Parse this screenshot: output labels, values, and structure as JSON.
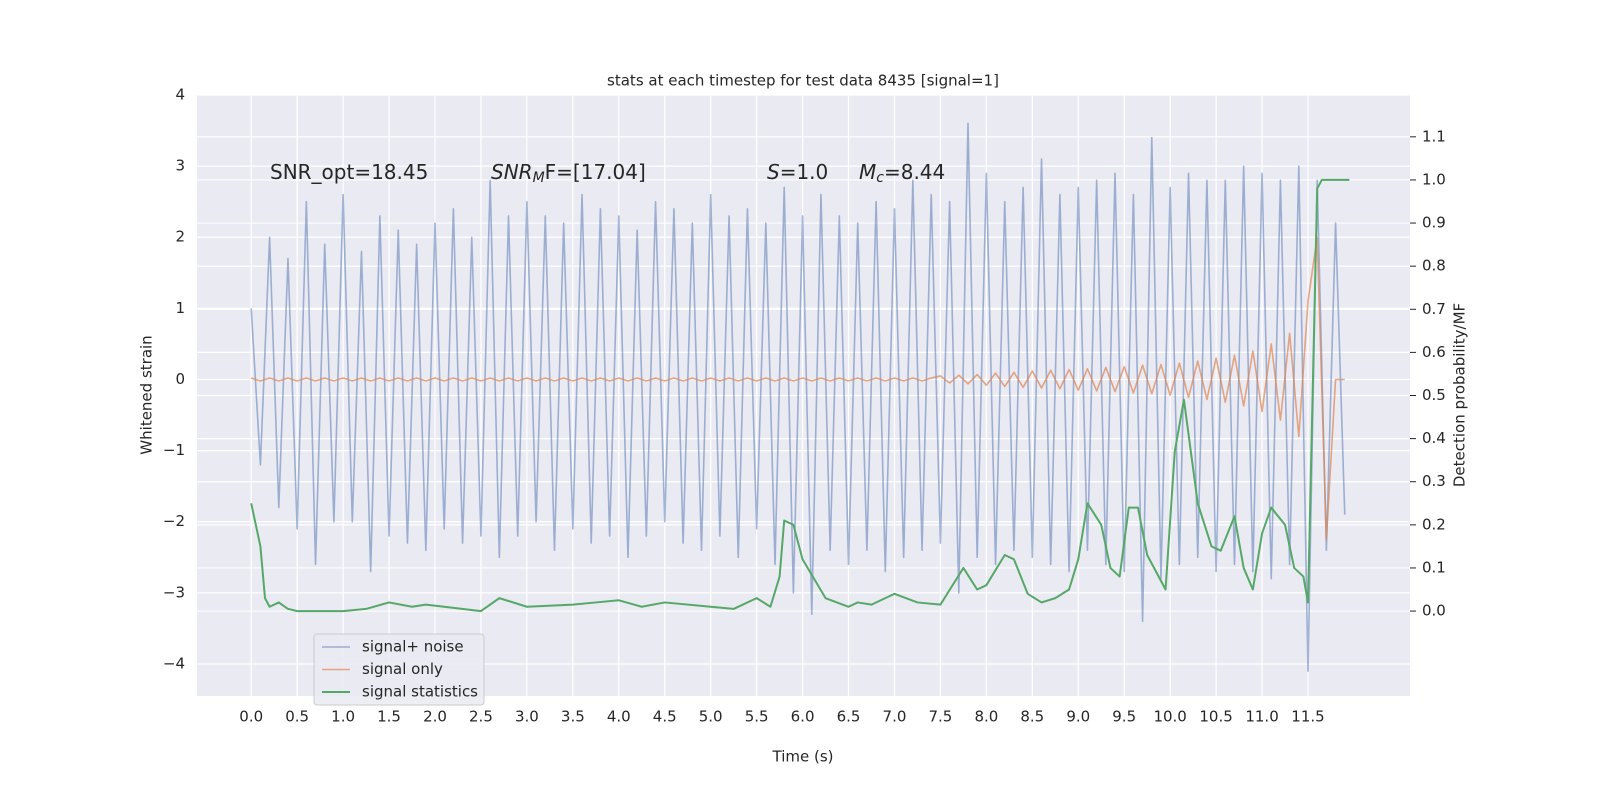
{
  "chart_data": {
    "type": "line",
    "title": "stats at each timestep for test data 8435 [signal=1]",
    "xlabel": "Time (s)",
    "ylabel": "Whitened strain",
    "y2label": "Detection probability/MF",
    "xlim": [
      -0.59,
      12.61
    ],
    "ylim": [
      -4.45,
      4.0
    ],
    "y2lim": [
      -0.197,
      1.197
    ],
    "xticks": [
      {
        "value": 0,
        "label": "0.0"
      },
      0.5,
      {
        "value": 1,
        "label": "1.0"
      },
      1.5,
      {
        "value": 2,
        "label": "2.0"
      },
      2.5,
      {
        "value": 3,
        "label": "3.0"
      },
      3.5,
      {
        "value": 4,
        "label": "4.0"
      },
      4.5,
      {
        "value": 5,
        "label": "5.0"
      },
      5.5,
      {
        "value": 6,
        "label": "6.0"
      },
      6.5,
      {
        "value": 7,
        "label": "7.0"
      },
      7.5,
      {
        "value": 8,
        "label": "8.0"
      },
      8.5,
      {
        "value": 9,
        "label": "9.0"
      },
      9.5,
      {
        "value": 10,
        "label": "10.0"
      },
      10.5,
      {
        "value": 11,
        "label": "11.0"
      },
      11.5
    ],
    "yticks": [
      {
        "value": -4,
        "label": "−4"
      },
      {
        "value": -3,
        "label": "−3"
      },
      {
        "value": -2,
        "label": "−2"
      },
      {
        "value": -1,
        "label": "−1"
      },
      0,
      1,
      2,
      3,
      4
    ],
    "y2ticks": [
      {
        "value": 0,
        "label": "0.0"
      },
      0.1,
      0.2,
      0.3,
      0.4,
      0.5,
      0.6,
      0.7,
      0.8,
      0.9,
      {
        "value": 1,
        "label": "1.0"
      },
      1.1
    ],
    "grid": true,
    "legend": "lower left",
    "annotations": [
      {
        "text": "SNR_opt=18.45"
      },
      {
        "text": "SNR",
        "sub": "M",
        "rest": "F=[17.04]"
      },
      {
        "text": "S",
        "rest": "=1.0"
      },
      {
        "text": "M",
        "sub": "c",
        "rest": "=8.44"
      }
    ],
    "series": [
      {
        "name": "signal+ noise",
        "color": "#4c72b0",
        "x": [
          0.0,
          0.1,
          0.2,
          0.3,
          0.4,
          0.5,
          0.6,
          0.7,
          0.8,
          0.9,
          1.0,
          1.1,
          1.2,
          1.3,
          1.4,
          1.5,
          1.6,
          1.7,
          1.8,
          1.9,
          2.0,
          2.1,
          2.2,
          2.3,
          2.4,
          2.5,
          2.6,
          2.7,
          2.8,
          2.9,
          3.0,
          3.1,
          3.2,
          3.3,
          3.4,
          3.5,
          3.6,
          3.7,
          3.8,
          3.9,
          4.0,
          4.1,
          4.2,
          4.3,
          4.4,
          4.5,
          4.6,
          4.7,
          4.8,
          4.9,
          5.0,
          5.1,
          5.2,
          5.3,
          5.4,
          5.5,
          5.6,
          5.7,
          5.8,
          5.9,
          6.0,
          6.1,
          6.2,
          6.3,
          6.4,
          6.5,
          6.6,
          6.7,
          6.8,
          6.9,
          7.0,
          7.1,
          7.2,
          7.3,
          7.4,
          7.5,
          7.6,
          7.7,
          7.8,
          7.9,
          8.0,
          8.1,
          8.2,
          8.3,
          8.4,
          8.5,
          8.6,
          8.7,
          8.8,
          8.9,
          9.0,
          9.1,
          9.2,
          9.3,
          9.4,
          9.5,
          9.6,
          9.7,
          9.8,
          9.9,
          10.0,
          10.1,
          10.2,
          10.3,
          10.4,
          10.5,
          10.6,
          10.7,
          10.8,
          10.9,
          11.0,
          11.1,
          11.2,
          11.3,
          11.4,
          11.5,
          11.6,
          11.7,
          11.8,
          11.9
        ],
        "values": [
          1.0,
          -1.2,
          2.0,
          -1.8,
          1.7,
          -2.1,
          2.5,
          -2.6,
          1.9,
          -2.0,
          2.6,
          -2.0,
          1.8,
          -2.7,
          2.3,
          -2.2,
          2.1,
          -2.3,
          1.9,
          -2.4,
          2.2,
          -2.1,
          2.4,
          -2.3,
          2.0,
          -2.2,
          2.8,
          -2.5,
          2.3,
          -2.2,
          2.5,
          -2.0,
          2.3,
          -2.4,
          2.2,
          -2.1,
          2.6,
          -2.3,
          2.4,
          -2.2,
          2.3,
          -2.5,
          2.1,
          -2.2,
          2.5,
          -2.0,
          2.4,
          -2.3,
          2.2,
          -2.4,
          2.6,
          -2.2,
          2.3,
          -2.5,
          2.4,
          -2.1,
          2.2,
          -2.6,
          2.7,
          -3.0,
          2.3,
          -3.3,
          2.6,
          -2.4,
          2.3,
          -2.6,
          2.2,
          -2.4,
          2.5,
          -2.7,
          2.4,
          -2.5,
          2.8,
          -2.4,
          2.6,
          -2.3,
          2.5,
          -3.0,
          3.6,
          -2.5,
          2.9,
          -2.6,
          2.5,
          -2.4,
          2.7,
          -2.5,
          3.1,
          -2.6,
          2.6,
          -2.7,
          2.7,
          -2.4,
          2.8,
          -2.6,
          2.9,
          -2.7,
          2.6,
          -3.4,
          3.4,
          -2.8,
          2.7,
          -2.6,
          2.9,
          -2.5,
          2.8,
          -2.7,
          2.8,
          -2.6,
          3.0,
          -2.7,
          2.9,
          -2.8,
          2.8,
          -2.6,
          3.0,
          -4.1,
          2.8,
          -2.4,
          2.2,
          -1.9
        ]
      },
      {
        "name": "signal only",
        "color": "#dd8452",
        "x": [
          0.0,
          0.1,
          0.2,
          0.3,
          0.4,
          0.5,
          0.6,
          0.7,
          0.8,
          0.9,
          1.0,
          1.1,
          1.2,
          1.3,
          1.4,
          1.5,
          1.6,
          1.7,
          1.8,
          1.9,
          2.0,
          2.1,
          2.2,
          2.3,
          2.4,
          2.5,
          2.6,
          2.7,
          2.8,
          2.9,
          3.0,
          3.1,
          3.2,
          3.3,
          3.4,
          3.5,
          3.6,
          3.7,
          3.8,
          3.9,
          4.0,
          4.1,
          4.2,
          4.3,
          4.4,
          4.5,
          4.6,
          4.7,
          4.8,
          4.9,
          5.0,
          5.1,
          5.2,
          5.3,
          5.4,
          5.5,
          5.6,
          5.7,
          5.8,
          5.9,
          6.0,
          6.1,
          6.2,
          6.3,
          6.4,
          6.5,
          6.6,
          6.7,
          6.8,
          6.9,
          7.0,
          7.1,
          7.2,
          7.3,
          7.4,
          7.5,
          7.6,
          7.7,
          7.8,
          7.9,
          8.0,
          8.1,
          8.2,
          8.3,
          8.4,
          8.5,
          8.6,
          8.7,
          8.8,
          8.9,
          9.0,
          9.1,
          9.2,
          9.3,
          9.4,
          9.5,
          9.6,
          9.7,
          9.8,
          9.9,
          10.0,
          10.1,
          10.2,
          10.3,
          10.4,
          10.5,
          10.6,
          10.7,
          10.8,
          10.9,
          11.0,
          11.1,
          11.2,
          11.3,
          11.4,
          11.5,
          11.6,
          11.7,
          11.8,
          11.9
        ],
        "values": [
          0.02,
          -0.02,
          0.02,
          -0.02,
          0.02,
          -0.02,
          0.02,
          -0.02,
          0.02,
          -0.02,
          0.02,
          -0.02,
          0.02,
          -0.02,
          0.02,
          -0.02,
          0.02,
          -0.02,
          0.02,
          -0.02,
          0.02,
          -0.02,
          0.02,
          -0.02,
          0.02,
          -0.02,
          0.02,
          -0.02,
          0.02,
          -0.02,
          0.02,
          -0.02,
          0.02,
          -0.02,
          0.02,
          -0.02,
          0.02,
          -0.02,
          0.02,
          -0.02,
          0.02,
          -0.02,
          0.02,
          -0.02,
          0.02,
          -0.02,
          0.02,
          -0.02,
          0.02,
          -0.02,
          0.02,
          -0.02,
          0.02,
          -0.02,
          0.02,
          -0.02,
          0.02,
          -0.02,
          0.02,
          -0.02,
          0.02,
          -0.02,
          0.02,
          -0.02,
          0.02,
          -0.02,
          0.02,
          -0.02,
          0.02,
          -0.02,
          0.02,
          -0.02,
          0.02,
          -0.02,
          0.02,
          0.05,
          -0.05,
          0.06,
          -0.06,
          0.07,
          -0.08,
          0.09,
          -0.1,
          0.1,
          -0.11,
          0.12,
          -0.12,
          0.13,
          -0.13,
          0.14,
          -0.15,
          0.15,
          -0.16,
          0.17,
          -0.17,
          0.18,
          -0.19,
          0.2,
          -0.2,
          0.21,
          -0.22,
          0.23,
          -0.25,
          0.26,
          -0.28,
          0.3,
          -0.32,
          0.34,
          -0.37,
          0.4,
          -0.45,
          0.5,
          -0.57,
          0.65,
          -0.8,
          1.1,
          2.0,
          -2.25,
          0,
          0
        ]
      },
      {
        "name": "signal statistics",
        "color": "#55a868",
        "axis": "y2",
        "x": [
          0,
          0.1,
          0.15,
          0.2,
          0.3,
          0.4,
          0.5,
          0.75,
          1.0,
          1.25,
          1.5,
          1.75,
          1.9,
          2.1,
          2.5,
          2.7,
          3.0,
          3.5,
          3.75,
          4.0,
          4.25,
          4.5,
          5.0,
          5.25,
          5.5,
          5.65,
          5.75,
          5.8,
          5.9,
          6.0,
          6.25,
          6.5,
          6.6,
          6.75,
          7.0,
          7.25,
          7.5,
          7.75,
          7.9,
          8.0,
          8.2,
          8.3,
          8.45,
          8.6,
          8.75,
          8.9,
          9.0,
          9.1,
          9.25,
          9.35,
          9.45,
          9.55,
          9.65,
          9.75,
          9.95,
          10.05,
          10.15,
          10.3,
          10.45,
          10.55,
          10.7,
          10.8,
          10.9,
          11.0,
          11.1,
          11.25,
          11.35,
          11.45,
          11.5,
          11.6,
          11.65,
          11.7,
          11.75,
          11.95
        ],
        "values": [
          0.25,
          0.15,
          0.03,
          0.01,
          0.02,
          0.005,
          0.0,
          0.0,
          0.0,
          0.005,
          0.02,
          0.01,
          0.015,
          0.01,
          0.0,
          0.03,
          0.01,
          0.015,
          0.02,
          0.025,
          0.01,
          0.02,
          0.01,
          0.005,
          0.03,
          0.01,
          0.08,
          0.21,
          0.2,
          0.12,
          0.03,
          0.01,
          0.02,
          0.015,
          0.04,
          0.02,
          0.015,
          0.1,
          0.05,
          0.06,
          0.13,
          0.12,
          0.04,
          0.02,
          0.03,
          0.05,
          0.12,
          0.25,
          0.2,
          0.1,
          0.08,
          0.24,
          0.24,
          0.13,
          0.05,
          0.37,
          0.49,
          0.25,
          0.15,
          0.14,
          0.22,
          0.1,
          0.05,
          0.18,
          0.24,
          0.2,
          0.1,
          0.08,
          0.02,
          0.98,
          1.0,
          1.0,
          1.0,
          1.0
        ]
      }
    ]
  }
}
